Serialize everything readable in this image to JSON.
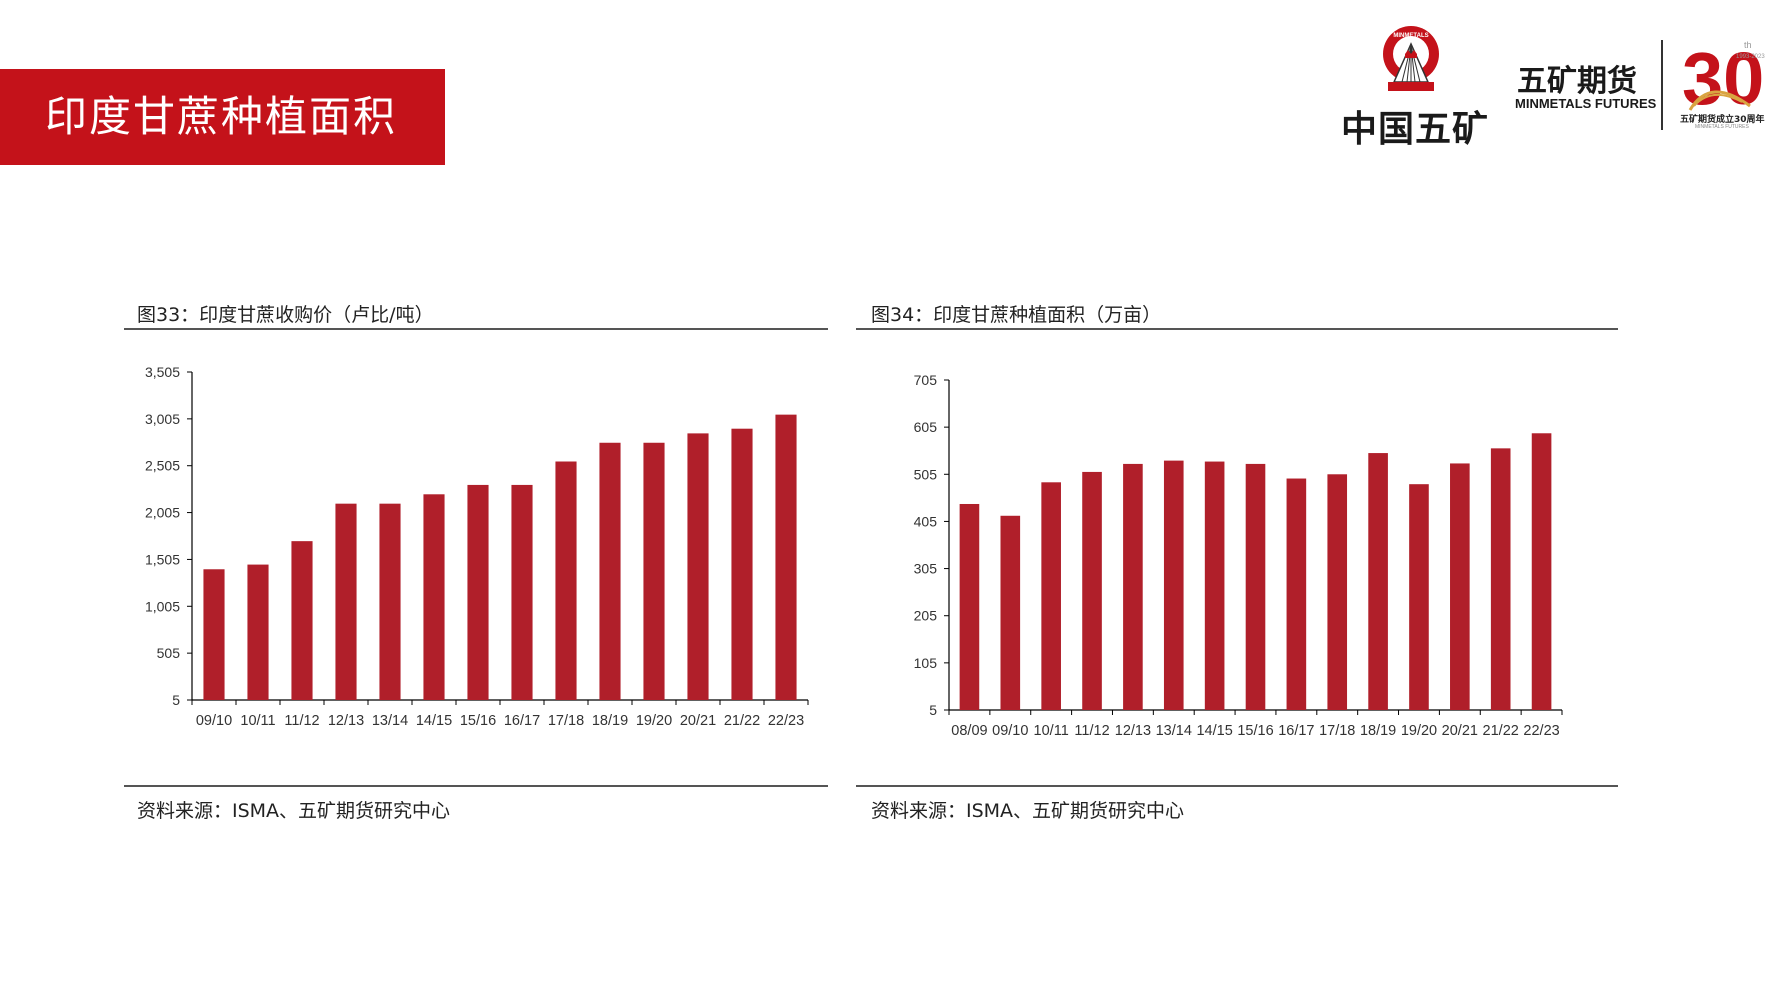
{
  "header": {
    "title": "印度甘蔗种植面积",
    "brand_color": "#c4121a"
  },
  "logos": {
    "emblem_icon": "minmetals-emblem-icon",
    "emblem_text": "MINMETALS",
    "company_cn": "中国五矿",
    "futures_cn": "五矿期货",
    "futures_en": "MINMETALS FUTURES",
    "anniversary_number": "30",
    "anniversary_sup": "th",
    "anniversary_years": "1993-2023",
    "anniversary_cn": "五矿期货成立30周年",
    "anniversary_en": "MINMETALS FUTURES"
  },
  "charts": {
    "left": {
      "caption": "图33：印度甘蔗收购价（卢比/吨）",
      "source": "资料来源：ISMA、五矿期货研究中心"
    },
    "right": {
      "caption": "图34：印度甘蔗种植面积（万亩）",
      "source": "资料来源：ISMA、五矿期货研究中心"
    }
  },
  "bar_color": "#b01f2a",
  "chart_data": [
    {
      "type": "bar",
      "title": "图33：印度甘蔗收购价（卢比/吨）",
      "categories": [
        "09/10",
        "10/11",
        "11/12",
        "12/13",
        "13/14",
        "14/15",
        "15/16",
        "16/17",
        "17/18",
        "18/19",
        "19/20",
        "20/21",
        "21/22",
        "22/23"
      ],
      "values": [
        1400,
        1450,
        1700,
        2100,
        2100,
        2200,
        2300,
        2300,
        2550,
        2750,
        2750,
        2850,
        2900,
        3050
      ],
      "yticks": [
        "5",
        "505",
        "1,005",
        "1,505",
        "2,005",
        "2,505",
        "3,005",
        "3,505"
      ],
      "ylim": [
        5,
        3505
      ],
      "xlabel": "",
      "ylabel": "",
      "grid": false
    },
    {
      "type": "bar",
      "title": "图34：印度甘蔗种植面积（万亩）",
      "categories": [
        "08/09",
        "09/10",
        "10/11",
        "11/12",
        "12/13",
        "13/14",
        "14/15",
        "15/16",
        "16/17",
        "17/18",
        "18/19",
        "19/20",
        "20/21",
        "21/22",
        "22/23"
      ],
      "values": [
        442,
        417,
        488,
        510,
        527,
        534,
        532,
        527,
        496,
        505,
        550,
        484,
        528,
        560,
        592
      ],
      "yticks": [
        "5",
        "105",
        "205",
        "305",
        "405",
        "505",
        "605",
        "705"
      ],
      "ylim": [
        5,
        705
      ],
      "xlabel": "",
      "ylabel": "",
      "grid": false
    }
  ]
}
